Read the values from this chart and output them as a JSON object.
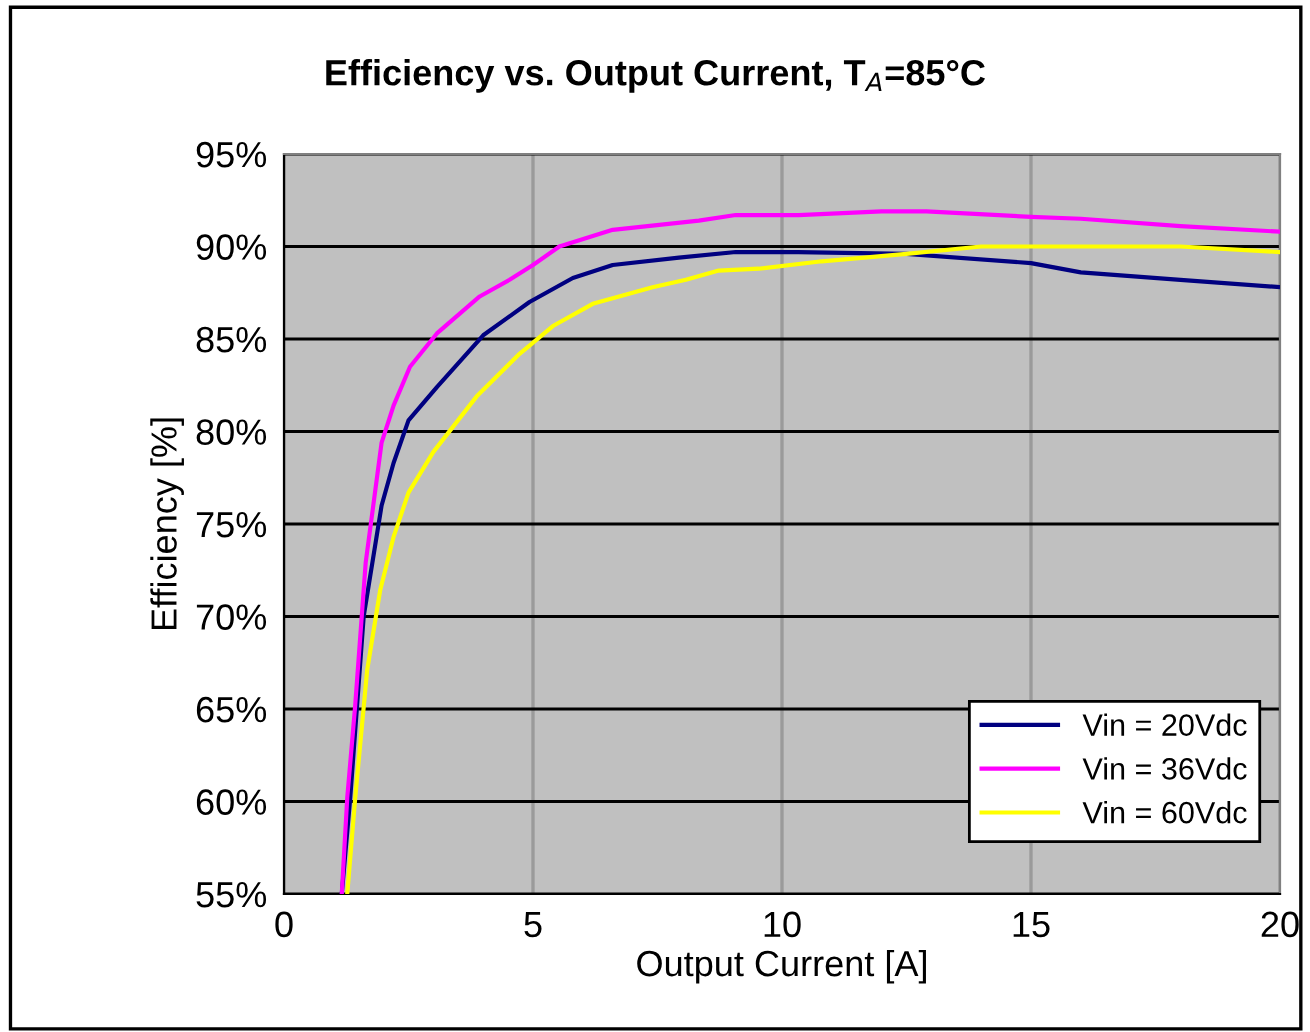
{
  "chart_data": {
    "type": "line",
    "title": "Efficiency vs. Output Current, T$_{A}$=85°C",
    "xlabel": "Output Current [A]",
    "ylabel": "Efficiency [%]",
    "xlim": [
      0,
      20
    ],
    "xticks": [
      0,
      5,
      10,
      15,
      20
    ],
    "ylim": [
      55,
      95
    ],
    "yticks": [
      {
        "value": 55,
        "label": "55%"
      },
      {
        "value": 60,
        "label": "60%"
      },
      {
        "value": 65,
        "label": "65%"
      },
      {
        "value": 70,
        "label": "70%"
      },
      {
        "value": 75,
        "label": "75%"
      },
      {
        "value": 80,
        "label": "80%"
      },
      {
        "value": 85,
        "label": "85%"
      },
      {
        "value": 90,
        "label": "90%"
      },
      {
        "value": 95,
        "label": "95%"
      }
    ],
    "grid": true,
    "legend": "bottom right",
    "marker": "none",
    "line_style": "solid",
    "series": [
      {
        "name": "Vin = 20Vdc",
        "color": "#000080",
        "x": [
          1.16,
          1.33,
          1.6,
          1.96,
          2.2,
          2.5,
          3.07,
          4.0,
          4.93,
          5.8,
          6.6,
          7.93,
          9.07,
          10.33,
          12.5,
          15,
          16,
          18,
          20
        ],
        "values": [
          55,
          60.2,
          70,
          76,
          78.3,
          80.6,
          82.4,
          85.2,
          87.0,
          88.3,
          89.0,
          89.4,
          89.7,
          89.7,
          89.6,
          89.1,
          88.6,
          88.2,
          87.8
        ]
      },
      {
        "name": "Vin = 36Vdc",
        "color": "#ff00ff",
        "x": [
          1.16,
          1.27,
          1.43,
          1.64,
          1.96,
          2.2,
          2.53,
          3.07,
          3.93,
          4.53,
          5.0,
          5.53,
          6.6,
          8.33,
          9.07,
          10.33,
          12,
          12.9,
          15,
          16,
          18,
          20
        ],
        "values": [
          55,
          60.2,
          65.2,
          72.9,
          79.4,
          81.4,
          83.5,
          85.3,
          87.3,
          88.2,
          89.0,
          90.0,
          90.9,
          91.4,
          91.7,
          91.7,
          91.9,
          91.9,
          91.6,
          91.5,
          91.1,
          90.8
        ]
      },
      {
        "name": "Vin = 60Vdc",
        "color": "#ffff00",
        "x": [
          1.27,
          1.43,
          1.67,
          1.93,
          2.2,
          2.5,
          3.0,
          3.87,
          4.73,
          5.4,
          6.2,
          6.6,
          7.4,
          8.07,
          8.73,
          9.53,
          10.8,
          12.5,
          14,
          18,
          20
        ],
        "values": [
          55,
          60.2,
          67.1,
          71.4,
          74.3,
          76.7,
          78.9,
          81.9,
          84.2,
          85.7,
          86.9,
          87.2,
          87.8,
          88.2,
          88.7,
          88.8,
          89.2,
          89.6,
          90.0,
          90.0,
          89.7
        ]
      }
    ]
  }
}
